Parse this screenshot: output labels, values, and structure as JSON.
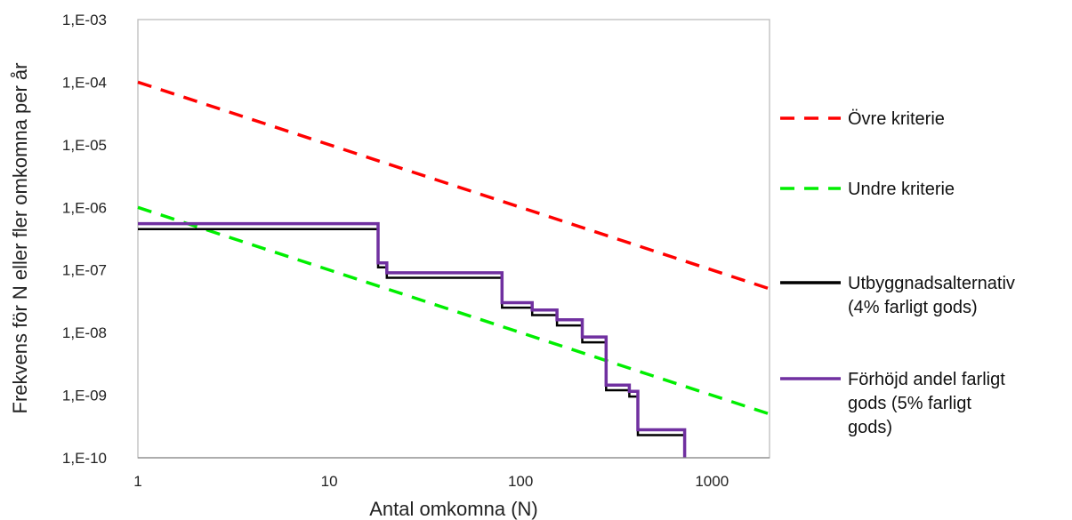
{
  "chart_data": {
    "type": "line",
    "title": "",
    "xlabel": "Antal omkomna (N)",
    "ylabel": "Frekvens för N eller fler omkomna per år",
    "x_scale": "log",
    "y_scale": "log",
    "xlim": [
      1,
      2000
    ],
    "ylim": [
      1e-10,
      0.001
    ],
    "x_ticks": [
      1,
      10,
      100,
      1000
    ],
    "x_tick_labels": [
      "1",
      "10",
      "100",
      "1000"
    ],
    "y_ticks": [
      1e-10,
      1e-09,
      1e-08,
      1e-07,
      1e-06,
      1e-05,
      0.0001,
      0.001
    ],
    "y_tick_labels": [
      "1,E-10",
      "1,E-09",
      "1,E-08",
      "1,E-07",
      "1,E-06",
      "1,E-05",
      "1,E-04",
      "1,E-03"
    ],
    "grid": false,
    "legend_position": "right",
    "series": [
      {
        "name": "Övre kriterie",
        "color": "#ff0000",
        "style": "dashed",
        "points": [
          [
            1,
            0.0001
          ],
          [
            2000,
            5e-08
          ]
        ]
      },
      {
        "name": "Undre kriterie",
        "color": "#00ee00",
        "style": "dashed",
        "points": [
          [
            1,
            1e-06
          ],
          [
            2000,
            5e-10
          ]
        ]
      },
      {
        "name": "Utbyggnadsalternativ (4% farligt gods)",
        "legend_lines": [
          "Utbyggnadsalternativ",
          "(4% farligt gods)"
        ],
        "color": "#000000",
        "style": "step",
        "points": [
          [
            1,
            4.5e-07
          ],
          [
            18,
            4.5e-07
          ],
          [
            18,
            1.1e-07
          ],
          [
            20,
            1.1e-07
          ],
          [
            20,
            7.5e-08
          ],
          [
            80,
            7.5e-08
          ],
          [
            80,
            2.5e-08
          ],
          [
            115,
            2.5e-08
          ],
          [
            115,
            1.9e-08
          ],
          [
            155,
            1.9e-08
          ],
          [
            155,
            1.3e-08
          ],
          [
            210,
            1.3e-08
          ],
          [
            210,
            7e-09
          ],
          [
            280,
            7e-09
          ],
          [
            280,
            1.2e-09
          ],
          [
            370,
            1.2e-09
          ],
          [
            370,
            9.5e-10
          ],
          [
            410,
            9.5e-10
          ],
          [
            410,
            2.3e-10
          ],
          [
            720,
            2.3e-10
          ],
          [
            720,
            1e-10
          ]
        ]
      },
      {
        "name": "Förhöjd andel farligt gods (5% farligt gods)",
        "legend_lines": [
          "Förhöjd andel farligt",
          "gods (5% farligt",
          "gods)"
        ],
        "color": "#7030a0",
        "style": "step",
        "points": [
          [
            1,
            5.5e-07
          ],
          [
            18,
            5.5e-07
          ],
          [
            18,
            1.3e-07
          ],
          [
            20,
            1.3e-07
          ],
          [
            20,
            9e-08
          ],
          [
            80,
            9e-08
          ],
          [
            80,
            3e-08
          ],
          [
            115,
            3e-08
          ],
          [
            115,
            2.3e-08
          ],
          [
            155,
            2.3e-08
          ],
          [
            155,
            1.6e-08
          ],
          [
            210,
            1.6e-08
          ],
          [
            210,
            8.5e-09
          ],
          [
            280,
            8.5e-09
          ],
          [
            280,
            1.45e-09
          ],
          [
            370,
            1.45e-09
          ],
          [
            370,
            1.15e-09
          ],
          [
            410,
            1.15e-09
          ],
          [
            410,
            2.8e-10
          ],
          [
            720,
            2.8e-10
          ],
          [
            720,
            1e-10
          ]
        ]
      }
    ]
  }
}
